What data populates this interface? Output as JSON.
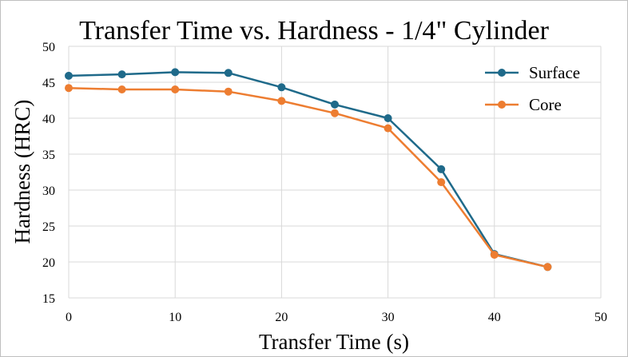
{
  "chart_data": {
    "type": "line",
    "title": "Transfer Time vs. Hardness - 1/4\" Cylinder",
    "xlabel": "Transfer  Time (s)",
    "ylabel": "Hardness (HRC)",
    "xlim": [
      0,
      50
    ],
    "ylim": [
      15,
      50
    ],
    "xticks": [
      0,
      10,
      20,
      30,
      40,
      50
    ],
    "yticks": [
      15,
      20,
      25,
      30,
      35,
      40,
      45,
      50
    ],
    "grid": true,
    "legend_position": "right",
    "x": [
      0,
      5,
      10,
      15,
      20,
      25,
      30,
      35,
      40,
      45
    ],
    "series": [
      {
        "name": "Surface",
        "color": "#1f6a8a",
        "values": [
          45.9,
          46.1,
          46.4,
          46.3,
          44.3,
          41.9,
          40.0,
          32.9,
          21.1,
          19.3
        ]
      },
      {
        "name": "Core",
        "color": "#ed7d31",
        "values": [
          44.2,
          44.0,
          44.0,
          43.7,
          42.4,
          40.7,
          38.6,
          31.1,
          21.0,
          19.3
        ]
      }
    ]
  }
}
